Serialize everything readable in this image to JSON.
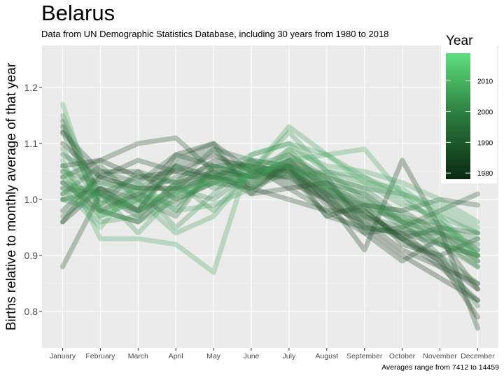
{
  "header": {
    "title": "Belarus",
    "subtitle": "Data from UN Demographic Statistics Database, including 30 years from 1980 to 2018"
  },
  "caption": "Averages range from 7412 to 14459",
  "colors": {
    "panel_bg": "#ebebeb",
    "grid": "#ffffff",
    "low": "#132b13",
    "high": "#56d67a"
  },
  "chart_data": {
    "type": "line",
    "title": "Belarus",
    "subtitle": "Data from UN Demographic Statistics Database, including 30 years from 1980 to 2018",
    "xlabel": "",
    "ylabel": "Births relative to monthly average of that year",
    "categories": [
      "January",
      "February",
      "March",
      "April",
      "May",
      "June",
      "July",
      "August",
      "September",
      "October",
      "November",
      "December"
    ],
    "ylim": [
      0.735,
      1.275
    ],
    "yticks": [
      0.8,
      0.9,
      1.0,
      1.1,
      1.2
    ],
    "ytick_labels": [
      "0.8",
      "0.9",
      "1.0",
      "1.1",
      "1.2"
    ],
    "grid": true,
    "legend": {
      "title": "Year",
      "position": "right",
      "type": "colorbar",
      "range": [
        1978,
        2019
      ],
      "ticks": [
        1980,
        1990,
        2000,
        2010
      ],
      "tick_labels": [
        "1980",
        "1990",
        "2000",
        "2010"
      ]
    },
    "caption": "Averages range from 7412 to 14459",
    "series": [
      {
        "year": 1980,
        "values": [
          1.06,
          1.07,
          1.04,
          1.05,
          1.08,
          1.05,
          1.05,
          1.01,
          0.98,
          0.93,
          0.89,
          0.84
        ]
      },
      {
        "year": 1981,
        "values": [
          0.96,
          1.02,
          1.0,
          1.08,
          1.1,
          1.05,
          1.04,
          1.0,
          0.95,
          0.9,
          0.86,
          0.82
        ]
      },
      {
        "year": 1982,
        "values": [
          1.03,
          0.98,
          0.96,
          1.02,
          1.07,
          1.06,
          1.02,
          1.03,
          0.97,
          0.94,
          0.89,
          0.79
        ]
      },
      {
        "year": 1983,
        "values": [
          1.1,
          1.04,
          1.02,
          1.02,
          1.04,
          1.07,
          1.03,
          1.0,
          0.91,
          1.07,
          0.95,
          0.77
        ]
      },
      {
        "year": 1984,
        "values": [
          1.13,
          1.01,
          0.98,
          1.06,
          1.04,
          1.02,
          1.06,
          0.99,
          0.96,
          0.91,
          0.88,
          0.85
        ]
      },
      {
        "year": 1985,
        "values": [
          0.98,
          1.04,
          1.07,
          1.05,
          1.04,
          1.03,
          1.06,
          0.97,
          0.99,
          0.92,
          0.9,
          0.93
        ]
      },
      {
        "year": 1986,
        "values": [
          1.12,
          1.05,
          1.05,
          1.0,
          1.03,
          1.02,
          1.0,
          0.98,
          0.94,
          0.89,
          0.93,
          0.84
        ]
      },
      {
        "year": 1987,
        "values": [
          0.88,
          1.01,
          0.97,
          1.03,
          1.05,
          1.04,
          1.07,
          1.04,
          0.95,
          0.94,
          0.94,
          0.89
        ]
      },
      {
        "year": 1988,
        "values": [
          1.04,
          1.07,
          1.1,
          1.11,
          1.05,
          1.01,
          1.02,
          0.98,
          0.98,
          0.93,
          0.88,
          0.82
        ]
      },
      {
        "year": 1989,
        "values": [
          1.0,
          1.02,
          0.98,
          1.07,
          1.1,
          1.01,
          1.07,
          1.01,
          0.94,
          0.95,
          0.98,
          1.01
        ]
      },
      {
        "year": 1990,
        "values": [
          1.14,
          0.98,
          1.01,
          1.04,
          1.06,
          1.04,
          1.06,
          1.0,
          0.97,
          0.93,
          0.95,
          0.94
        ]
      },
      {
        "year": 1991,
        "values": [
          0.96,
          1.05,
          1.03,
          1.08,
          1.06,
          1.06,
          1.05,
          1.01,
          0.99,
          0.98,
          1.0,
          0.99
        ]
      },
      {
        "year": 1992,
        "values": [
          1.08,
          1.04,
          1.02,
          1.06,
          1.09,
          1.02,
          1.05,
          0.97,
          0.95,
          0.94,
          0.92,
          0.9
        ]
      },
      {
        "year": 1993,
        "values": [
          1.01,
          1.06,
          1.0,
          0.97,
          1.06,
          1.04,
          1.04,
          1.01,
          0.96,
          0.93,
          0.9,
          0.85
        ]
      },
      {
        "year": 1994,
        "values": [
          1.02,
          1.01,
          1.04,
          1.03,
          1.09,
          1.07,
          1.06,
          1.03,
          1.01,
          0.96,
          0.9,
          0.81
        ]
      },
      {
        "year": 1995,
        "values": [
          0.97,
          1.02,
          0.98,
          1.01,
          1.05,
          1.04,
          1.07,
          1.02,
          0.99,
          0.98,
          0.94,
          0.92
        ]
      },
      {
        "year": 1996,
        "values": [
          1.12,
          0.99,
          1.05,
          1.03,
          1.04,
          1.06,
          1.05,
          1.02,
          0.97,
          0.95,
          0.92,
          0.88
        ]
      },
      {
        "year": 1997,
        "values": [
          1.05,
          1.03,
          1.02,
          1.02,
          1.03,
          1.05,
          1.06,
          1.03,
          0.99,
          0.96,
          0.94,
          0.91
        ]
      },
      {
        "year": 1998,
        "values": [
          1.0,
          0.98,
          1.01,
          0.99,
          1.04,
          1.03,
          1.08,
          1.04,
          1.02,
          0.97,
          0.95,
          0.9
        ]
      },
      {
        "year": 1999,
        "values": [
          1.15,
          1.0,
          0.98,
          1.02,
          1.0,
          1.05,
          1.06,
          1.02,
          1.0,
          0.95,
          0.93,
          0.88
        ]
      },
      {
        "year": 2000,
        "values": [
          1.03,
          1.01,
          0.99,
          1.06,
          1.02,
          1.04,
          1.09,
          1.02,
          0.98,
          0.97,
          0.92,
          0.9
        ]
      },
      {
        "year": 2001,
        "values": [
          1.06,
          0.98,
          0.96,
          1.0,
          1.03,
          1.06,
          1.08,
          1.03,
          1.01,
          0.96,
          0.96,
          0.91
        ]
      },
      {
        "year": 2002,
        "values": [
          1.01,
          1.03,
          1.01,
          0.98,
          1.06,
          1.06,
          1.04,
          1.05,
          1.0,
          0.96,
          0.94,
          0.89
        ]
      },
      {
        "year": 2003,
        "values": [
          1.09,
          0.99,
          1.02,
          0.95,
          1.01,
          1.07,
          1.06,
          1.04,
          1.02,
          1.01,
          0.95,
          0.93
        ]
      },
      {
        "year": 2004,
        "values": [
          1.04,
          0.96,
          0.97,
          1.03,
          0.98,
          1.05,
          1.12,
          1.05,
          1.03,
          0.99,
          0.97,
          0.94
        ]
      },
      {
        "year": 2005,
        "values": [
          1.0,
          1.01,
          0.94,
          1.01,
          1.04,
          1.08,
          1.1,
          1.05,
          1.04,
          1.0,
          0.96,
          0.9
        ]
      },
      {
        "year": 2006,
        "values": [
          1.05,
          0.97,
          1.0,
          0.94,
          0.97,
          1.05,
          1.13,
          1.08,
          1.04,
          1.01,
          0.98,
          0.94
        ]
      },
      {
        "year": 2007,
        "values": [
          1.07,
          0.93,
          0.93,
          0.92,
          0.87,
          1.08,
          1.1,
          1.08,
          1.09,
          1.01,
          0.99,
          0.95
        ]
      },
      {
        "year": 2008,
        "values": [
          1.02,
          0.95,
          1.03,
          0.98,
          0.99,
          1.02,
          1.09,
          1.06,
          1.05,
          1.03,
          1.0,
          0.96
        ]
      },
      {
        "year": 2009,
        "values": [
          1.17,
          0.97,
          1.0,
          1.01,
          1.03,
          1.04,
          1.07,
          1.08,
          1.03,
          1.02,
          0.97,
          0.9
        ]
      }
    ]
  }
}
